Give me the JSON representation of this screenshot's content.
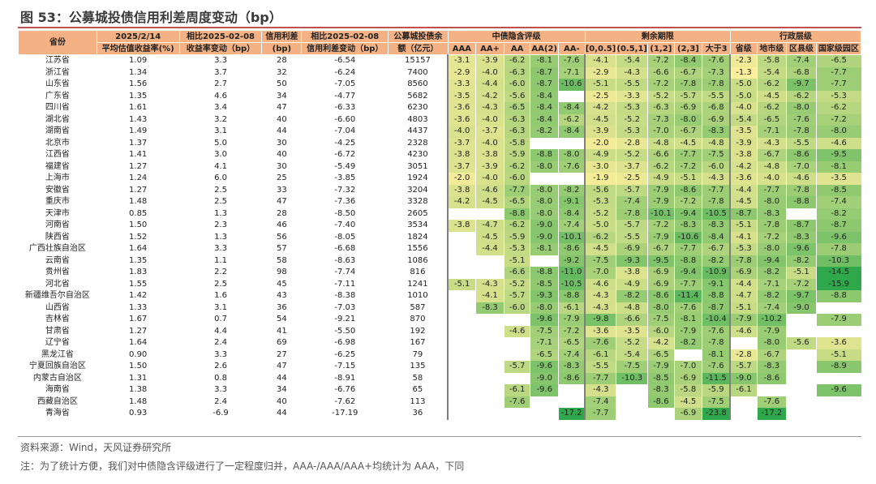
{
  "title": "图 53：公募城投债信用利差周度变动（bp）",
  "header": {
    "province": "省份",
    "col2": [
      "2025/2/14",
      "平均估值收益率(%)"
    ],
    "col3": [
      "相比2025-02-08",
      "收益率变动（bp）"
    ],
    "col4": [
      "信用利差",
      "(bp)"
    ],
    "col5": [
      "相比2025-02-08",
      "信用利差变动（bp）"
    ],
    "col6": [
      "公募城投债余",
      "额（亿元）"
    ],
    "group_rating": "中债隐含评级",
    "group_term": "剩余期限",
    "group_admin": "行政层级",
    "ratings": [
      "AAA",
      "AA+",
      "AA",
      "AA(2)",
      "AA-"
    ],
    "terms": [
      "[0,0.5]",
      "(0.5,1]",
      "(1,2]",
      "(2,3]",
      "大于3"
    ],
    "admins": [
      "省级",
      "地市级",
      "区县级",
      "国家级园区"
    ]
  },
  "rows": [
    {
      "p": "江苏省",
      "y": "1.09",
      "yc": "3.3",
      "s": "28",
      "sc": "-6.54",
      "bal": "15157",
      "r": [
        "-3.1",
        "-3.9",
        "-6.2",
        "-8.1",
        "-7.6"
      ],
      "t": [
        "-4.1",
        "-5.4",
        "-7.2",
        "-8.4",
        "-7.6"
      ],
      "a": [
        "-2.3",
        "-5.8",
        "-7.4",
        "-6.5"
      ]
    },
    {
      "p": "浙江省",
      "y": "1.34",
      "yc": "3.7",
      "s": "32",
      "sc": "-6.24",
      "bal": "7400",
      "r": [
        "-2.9",
        "-4.0",
        "-6.3",
        "-8.7",
        "-7.1"
      ],
      "t": [
        "-2.9",
        "-4.3",
        "-6.6",
        "-6.7",
        "-7.3"
      ],
      "a": [
        "-1.3",
        "-5.4",
        "-6.8",
        "-7.7"
      ]
    },
    {
      "p": "山东省",
      "y": "1.56",
      "yc": "2.7",
      "s": "50",
      "sc": "-7.05",
      "bal": "8560",
      "r": [
        "-3.3",
        "-4.4",
        "-6.0",
        "-8.7",
        "-10.6"
      ],
      "t": [
        "-5.1",
        "-5.5",
        "-7.2",
        "-7.8",
        "-7.8"
      ],
      "a": [
        "-5.0",
        "-6.2",
        "-9.7",
        "-7.7"
      ]
    },
    {
      "p": "广东省",
      "y": "1.35",
      "yc": "4.6",
      "s": "34",
      "sc": "-4.77",
      "bal": "5682",
      "r": [
        "-3.5",
        "-4.2",
        "-5.6",
        "-8.4",
        ""
      ],
      "t": [
        "-2.5",
        "-3.3",
        "-5.2",
        "-5.7",
        "-5.5"
      ],
      "a": [
        "-5.0",
        "-4.5",
        "-6.2",
        "-5.3"
      ]
    },
    {
      "p": "四川省",
      "y": "1.61",
      "yc": "3.4",
      "s": "47",
      "sc": "-6.33",
      "bal": "6230",
      "r": [
        "-3.6",
        "-4.3",
        "-6.5",
        "-8.4",
        "-8.4"
      ],
      "t": [
        "-4.2",
        "-5.3",
        "-6.3",
        "-6.9",
        "-6.8"
      ],
      "a": [
        "-4.0",
        "-6.2",
        "-8.0",
        "-6.2"
      ]
    },
    {
      "p": "湖北省",
      "y": "1.43",
      "yc": "3.2",
      "s": "40",
      "sc": "-6.60",
      "bal": "4803",
      "r": [
        "-3.6",
        "-4.0",
        "-6.3",
        "-8.4",
        "-6.2"
      ],
      "t": [
        "-4.5",
        "-5.2",
        "-7.3",
        "-8.0",
        "-6.9"
      ],
      "a": [
        "-5.4",
        "-6.5",
        "-7.6",
        "-7.2"
      ]
    },
    {
      "p": "湖南省",
      "y": "1.49",
      "yc": "3.1",
      "s": "44",
      "sc": "-7.04",
      "bal": "4437",
      "r": [
        "-4.0",
        "-3.7",
        "-6.3",
        "-8.2",
        "-8.4"
      ],
      "t": [
        "-3.9",
        "-5.3",
        "-7.0",
        "-6.7",
        "-8.3"
      ],
      "a": [
        "-3.5",
        "-7.1",
        "-7.8",
        "-8.0"
      ]
    },
    {
      "p": "北京市",
      "y": "1.37",
      "yc": "5.0",
      "s": "30",
      "sc": "-4.25",
      "bal": "2328",
      "r": [
        "-3.7",
        "-4.0",
        "-5.8",
        "",
        ""
      ],
      "t": [
        "-2.0",
        "-2.8",
        "-4.8",
        "-4.5",
        "-4.8"
      ],
      "a": [
        "-3.9",
        "-4.3",
        "-5.5",
        "-4.6"
      ]
    },
    {
      "p": "江西省",
      "y": "1.41",
      "yc": "3.0",
      "s": "40",
      "sc": "-6.72",
      "bal": "4230",
      "r": [
        "-3.8",
        "-3.8",
        "-5.9",
        "-8.8",
        "-8.0"
      ],
      "t": [
        "-4.9",
        "-5.2",
        "-6.6",
        "-7.7",
        "-7.5"
      ],
      "a": [
        "-3.8",
        "-6.7",
        "-8.6",
        "-9.5"
      ]
    },
    {
      "p": "福建省",
      "y": "1.27",
      "yc": "4.1",
      "s": "30",
      "sc": "-5.49",
      "bal": "3051",
      "r": [
        "-3.7",
        "-3.9",
        "-6.2",
        "-8.0",
        "-7.6"
      ],
      "t": [
        "-3.0",
        "-3.7",
        "-6.2",
        "-7.2",
        "-6.0"
      ],
      "a": [
        "-4.2",
        "-4.8",
        "-7.0",
        "-8.1"
      ]
    },
    {
      "p": "上海市",
      "y": "1.24",
      "yc": "6.0",
      "s": "25",
      "sc": "-3.85",
      "bal": "1924",
      "r": [
        "-2.0",
        "-4.0",
        "-6.0",
        "",
        ""
      ],
      "t": [
        "-1.9",
        "-2.5",
        "-4.9",
        "-5.1",
        "-4.3"
      ],
      "a": [
        "-3.6",
        "-4.0",
        "-4.6",
        "-3.5"
      ]
    },
    {
      "p": "安徽省",
      "y": "1.27",
      "yc": "2.5",
      "s": "33",
      "sc": "-7.32",
      "bal": "3204",
      "r": [
        "-3.8",
        "-4.6",
        "-7.7",
        "-8.0",
        "-8.2"
      ],
      "t": [
        "-5.6",
        "-5.7",
        "-7.9",
        "-8.6",
        "-7.7"
      ],
      "a": [
        "-4.4",
        "-7.7",
        "-7.8",
        "-8.5"
      ]
    },
    {
      "p": "重庆市",
      "y": "1.48",
      "yc": "2.5",
      "s": "47",
      "sc": "-7.36",
      "bal": "3328",
      "r": [
        "-4.2",
        "-4.5",
        "-6.5",
        "-8.0",
        "-9.1"
      ],
      "t": [
        "-5.3",
        "-7.4",
        "-7.9",
        "-7.2",
        "-7.8"
      ],
      "a": [
        "-4.5",
        "-8.0",
        "-8.8",
        "-7.4"
      ]
    },
    {
      "p": "天津市",
      "y": "0.85",
      "yc": "1.3",
      "s": "28",
      "sc": "-8.50",
      "bal": "2605",
      "r": [
        "",
        "",
        "-8.8",
        "-8.0",
        "-8.4"
      ],
      "t": [
        "-5.2",
        "-7.8",
        "-10.1",
        "-9.4",
        "-10.5"
      ],
      "a": [
        "-8.7",
        "-8.3",
        "",
        "-8.2"
      ]
    },
    {
      "p": "河南省",
      "y": "1.50",
      "yc": "2.3",
      "s": "46",
      "sc": "-7.40",
      "bal": "3534",
      "r": [
        "-3.8",
        "-4.7",
        "-6.2",
        "-9.0",
        "-7.4"
      ],
      "t": [
        "-5.0",
        "-5.7",
        "-7.2",
        "-8.3",
        "-8.3"
      ],
      "a": [
        "-5.1",
        "-7.8",
        "-8.7",
        "-8.7"
      ]
    },
    {
      "p": "陕西省",
      "y": "1.52",
      "yc": "1.3",
      "s": "56",
      "sc": "-8.05",
      "bal": "1824",
      "r": [
        "",
        "-4.5",
        "-5.9",
        "-9.0",
        "-10.1"
      ],
      "t": [
        "-6.2",
        "-5.5",
        "-7.9",
        "-10.6",
        "-8.4"
      ],
      "a": [
        "-4.1",
        "-7.2",
        "-8.3",
        "-9.6"
      ]
    },
    {
      "p": "广西壮族自治区",
      "y": "1.64",
      "yc": "3.3",
      "s": "57",
      "sc": "-6.68",
      "bal": "1556",
      "r": [
        "",
        "-4.4",
        "-5.3",
        "-8.1",
        "-8.6"
      ],
      "t": [
        "-4.5",
        "-6.9",
        "-6.7",
        "-7.7",
        "-6.7"
      ],
      "a": [
        "-5.3",
        "-8.0",
        "-9.6",
        "-7.8"
      ]
    },
    {
      "p": "云南省",
      "y": "1.35",
      "yc": "1.1",
      "s": "58",
      "sc": "-8.63",
      "bal": "1086",
      "r": [
        "",
        "",
        "-5.1",
        "",
        "-9.2"
      ],
      "t": [
        "-7.5",
        "-9.3",
        "-9.5",
        "-8.8",
        "-8.2"
      ],
      "a": [
        "-7.8",
        "-9.4",
        "-8.2",
        "-10.3"
      ]
    },
    {
      "p": "贵州省",
      "y": "1.83",
      "yc": "2.2",
      "s": "98",
      "sc": "-7.74",
      "bal": "816",
      "r": [
        "",
        "",
        "-6.6",
        "-8.8",
        "-11.0"
      ],
      "t": [
        "-7.0",
        "-3.8",
        "-6.9",
        "-9.4",
        "-10.9"
      ],
      "a": [
        "-6.9",
        "-8.2",
        "-5.1",
        "-14.5"
      ]
    },
    {
      "p": "河北省",
      "y": "1.55",
      "yc": "2.5",
      "s": "45",
      "sc": "-7.11",
      "bal": "1241",
      "r": [
        "-5.1",
        "-4.3",
        "-5.2",
        "-8.5",
        "-10.5"
      ],
      "t": [
        "-4.6",
        "-4.9",
        "-6.9",
        "-7.7",
        "-9.1"
      ],
      "a": [
        "-4.4",
        "-7.1",
        "-7.2",
        "-15.9"
      ]
    },
    {
      "p": "新疆维吾尔自治区",
      "y": "1.42",
      "yc": "1.6",
      "s": "43",
      "sc": "-8.38",
      "bal": "1010",
      "r": [
        "",
        "-4.1",
        "-5.7",
        "-9.3",
        "-8.8"
      ],
      "t": [
        "-4.3",
        "-8.2",
        "-8.6",
        "-11.4",
        "-8.8"
      ],
      "a": [
        "-4.7",
        "-8.2",
        "-9.7",
        "-8.8"
      ]
    },
    {
      "p": "山西省",
      "y": "1.33",
      "yc": "3.1",
      "s": "36",
      "sc": "-7.03",
      "bal": "587",
      "r": [
        "",
        "-8.3",
        "-6.0",
        "-8.0",
        "-6.1"
      ],
      "t": [
        "-4.3",
        "-4.8",
        "-8.0",
        "-7.6",
        "-8.7"
      ],
      "a": [
        "-5.1",
        "-7.4",
        "-9.0",
        ""
      ]
    },
    {
      "p": "吉林省",
      "y": "1.67",
      "yc": "0.7",
      "s": "54",
      "sc": "-9.21",
      "bal": "870",
      "r": [
        "",
        "",
        "",
        "-9.6",
        "-7.9"
      ],
      "t": [
        "-9.8",
        "-6.6",
        "-7.5",
        "-8.1",
        "-10.4"
      ],
      "a": [
        "-7.9",
        "-10.2",
        "",
        "-7.9"
      ]
    },
    {
      "p": "甘肃省",
      "y": "1.27",
      "yc": "4.4",
      "s": "41",
      "sc": "-5.50",
      "bal": "192",
      "r": [
        "",
        "",
        "-4.6",
        "-7.5",
        "-7.2"
      ],
      "t": [
        "-3.6",
        "-3.5",
        "-6.0",
        "-7.9",
        "-7.6"
      ],
      "a": [
        "-4.6",
        "-7.9",
        "",
        ""
      ]
    },
    {
      "p": "辽宁省",
      "y": "1.64",
      "yc": "2.4",
      "s": "69",
      "sc": "-6.98",
      "bal": "167",
      "r": [
        "",
        "",
        "",
        "-7.1",
        "-6.5"
      ],
      "t": [
        "-7.6",
        "-5.2",
        "-4.2",
        "-8.2",
        "-7.8"
      ],
      "a": [
        "",
        "-8.0",
        "-5.6",
        "-3.6"
      ]
    },
    {
      "p": "黑龙江省",
      "y": "0.90",
      "yc": "3.3",
      "s": "27",
      "sc": "-6.25",
      "bal": "79",
      "r": [
        "",
        "",
        "",
        "-6.5",
        "-7.4"
      ],
      "t": [
        "-6.1",
        "-5.4",
        "-6.5",
        "",
        "-8.1"
      ],
      "a": [
        "-2.8",
        "-6.7",
        "",
        "-5.1"
      ]
    },
    {
      "p": "宁夏回族自治区",
      "y": "1.50",
      "yc": "2.6",
      "s": "47",
      "sc": "-7.15",
      "bal": "135",
      "r": [
        "",
        "",
        "-5.7",
        "-9.6",
        "-8.3"
      ],
      "t": [
        "-5.5",
        "-7.5",
        "-7.9",
        "-7.0",
        "-7.6"
      ],
      "a": [
        "-5.7",
        "-8.3",
        "",
        "-8.9"
      ]
    },
    {
      "p": "内蒙古自治区",
      "y": "1.31",
      "yc": "0.8",
      "s": "44",
      "sc": "-8.91",
      "bal": "58",
      "r": [
        "",
        "",
        "",
        "-9.0",
        "-8.6"
      ],
      "t": [
        "-7.7",
        "-10.3",
        "-8.5",
        "-6.9",
        "-11.5"
      ],
      "a": [
        "-9.0",
        "-8.6",
        "",
        ""
      ]
    },
    {
      "p": "海南省",
      "y": "1.38",
      "yc": "3.3",
      "s": "34",
      "sc": "-6.76",
      "bal": "65",
      "r": [
        "",
        "",
        "-6.1",
        "-9.6",
        ""
      ],
      "t": [
        "-4.3",
        "",
        "-8.3",
        "-5.8",
        "-5.9"
      ],
      "a": [
        "-6.1",
        "",
        "",
        "-9.6"
      ]
    },
    {
      "p": "西藏自治区",
      "y": "1.48",
      "yc": "2.4",
      "s": "40",
      "sc": "-7.62",
      "bal": "113",
      "r": [
        "",
        "",
        "-7.6",
        "",
        ""
      ],
      "t": [
        "-7.4",
        "",
        "-8.6",
        "-4.5",
        "-7.5"
      ],
      "a": [
        "",
        "-7.6",
        "",
        ""
      ]
    },
    {
      "p": "青海省",
      "y": "0.93",
      "yc": "-6.9",
      "s": "44",
      "sc": "-17.19",
      "bal": "36",
      "r": [
        "",
        "",
        "",
        "",
        "-17.2"
      ],
      "t": [
        "-7.7",
        "",
        "",
        "-6.9",
        "-23.8"
      ],
      "a": [
        "",
        "-17.2",
        "",
        ""
      ]
    }
  ],
  "colors": {
    "header_bg": "#f4b183",
    "title_rule": "#c0504d",
    "heat_light": "#ffef9c",
    "heat_dark": "#2ea84a"
  },
  "notes": {
    "source": "资料来源：Wind，天风证券研究所",
    "note": "注：为了统计方便，我们对中债隐含评级进行了一定程度归并，AAA-/AAA/AAA+均统计为 AAA，下同"
  }
}
